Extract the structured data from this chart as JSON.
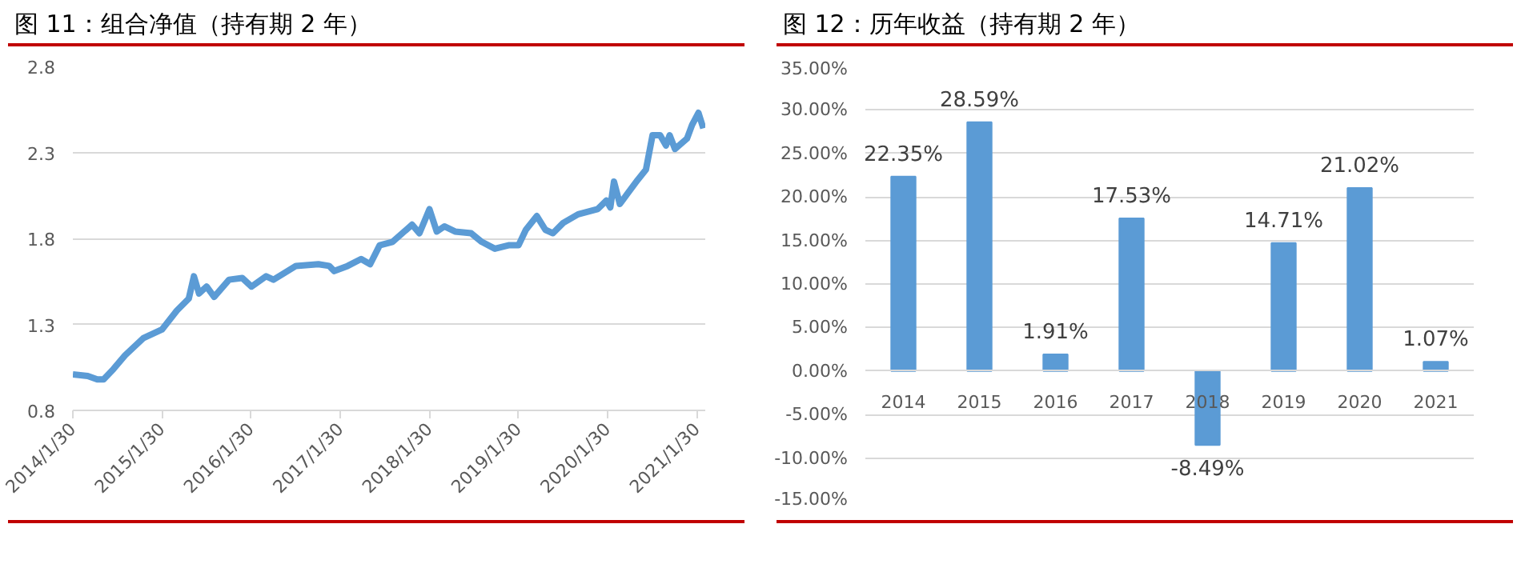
{
  "chart_data": [
    {
      "type": "line",
      "title": "图 11：组合净值（持有期 2 年）",
      "x": [
        "2014-01-30",
        "2014-04-01",
        "2014-05-10",
        "2014-06-05",
        "2014-07-15",
        "2014-09-01",
        "2014-11-15",
        "2015-01-30",
        "2015-04-01",
        "2015-05-20",
        "2015-06-10",
        "2015-07-01",
        "2015-08-01",
        "2015-09-01",
        "2015-11-01",
        "2015-12-25",
        "2016-02-01",
        "2016-04-01",
        "2016-05-01",
        "2016-08-01",
        "2016-11-01",
        "2016-12-15",
        "2017-01-05",
        "2017-03-01",
        "2017-04-25",
        "2017-06-01",
        "2017-07-10",
        "2017-09-01",
        "2017-11-20",
        "2017-12-20",
        "2018-01-30",
        "2018-03-01",
        "2018-04-01",
        "2018-05-15",
        "2018-07-20",
        "2018-09-01",
        "2018-10-25",
        "2018-12-20",
        "2019-01-30",
        "2019-03-01",
        "2019-04-15",
        "2019-05-20",
        "2019-06-20",
        "2019-08-01",
        "2019-10-01",
        "2019-12-20",
        "2020-01-25",
        "2020-02-10",
        "2020-02-25",
        "2020-03-20",
        "2020-04-20",
        "2020-06-01",
        "2020-07-05",
        "2020-08-01",
        "2020-09-01",
        "2020-09-25",
        "2020-10-10",
        "2020-11-01",
        "2020-12-20",
        "2021-01-10",
        "2021-02-05",
        "2021-02-25"
      ],
      "series": [
        {
          "color": "#5b9bd5",
          "values": [
            1.01,
            1.0,
            0.98,
            0.98,
            1.04,
            1.12,
            1.22,
            1.27,
            1.38,
            1.45,
            1.58,
            1.48,
            1.52,
            1.46,
            1.56,
            1.57,
            1.52,
            1.58,
            1.56,
            1.64,
            1.65,
            1.64,
            1.61,
            1.64,
            1.68,
            1.65,
            1.76,
            1.78,
            1.88,
            1.83,
            1.97,
            1.84,
            1.87,
            1.84,
            1.83,
            1.78,
            1.74,
            1.76,
            1.76,
            1.85,
            1.93,
            1.85,
            1.83,
            1.89,
            1.94,
            1.97,
            2.02,
            1.98,
            2.13,
            2.0,
            2.06,
            2.14,
            2.2,
            2.4,
            2.4,
            2.34,
            2.4,
            2.32,
            2.38,
            2.46,
            2.53,
            2.44
          ]
        }
      ],
      "xlim": [
        "2014-01-30",
        "2021-03-05"
      ],
      "xticks": [
        {
          "value": "2014-01-30",
          "label": "2014/1/30"
        },
        {
          "value": "2015-01-30",
          "label": "2015/1/30"
        },
        {
          "value": "2016-01-30",
          "label": "2016/1/30"
        },
        {
          "value": "2017-01-30",
          "label": "2017/1/30"
        },
        {
          "value": "2018-01-30",
          "label": "2018/1/30"
        },
        {
          "value": "2019-01-30",
          "label": "2019/1/30"
        },
        {
          "value": "2020-01-30",
          "label": "2020/1/30"
        },
        {
          "value": "2021-01-30",
          "label": "2021/1/30"
        }
      ],
      "ylim": [
        0.8,
        2.8
      ],
      "yticks": [
        0.8,
        1.3,
        1.8,
        2.3,
        2.8
      ],
      "grid": "y",
      "line_style": "solid",
      "marker": "none"
    },
    {
      "type": "bar",
      "title": "图 12：历年收益（持有期 2 年）",
      "categories": [
        "2014",
        "2015",
        "2016",
        "2017",
        "2018",
        "2019",
        "2020",
        "2021"
      ],
      "values": [
        22.35,
        28.59,
        1.91,
        17.53,
        -8.49,
        14.71,
        21.02,
        1.07
      ],
      "value_labels": [
        "22.35%",
        "28.59%",
        "1.91%",
        "17.53%",
        "-8.49%",
        "14.71%",
        "21.02%",
        "1.07%"
      ],
      "color": "#5b9bd5",
      "ylim": [
        -15,
        35
      ],
      "yticks": [
        {
          "value": -15,
          "label": "-15.00%"
        },
        {
          "value": -10,
          "label": "-10.00%"
        },
        {
          "value": -5,
          "label": "-5.00%"
        },
        {
          "value": 0,
          "label": "0.00%"
        },
        {
          "value": 5,
          "label": "5.00%"
        },
        {
          "value": 10,
          "label": "10.00%"
        },
        {
          "value": 15,
          "label": "15.00%"
        },
        {
          "value": 20,
          "label": "20.00%"
        },
        {
          "value": 25,
          "label": "25.00%"
        },
        {
          "value": 30,
          "label": "30.00%"
        },
        {
          "value": 35,
          "label": "35.00%"
        }
      ],
      "grid": "y"
    }
  ]
}
